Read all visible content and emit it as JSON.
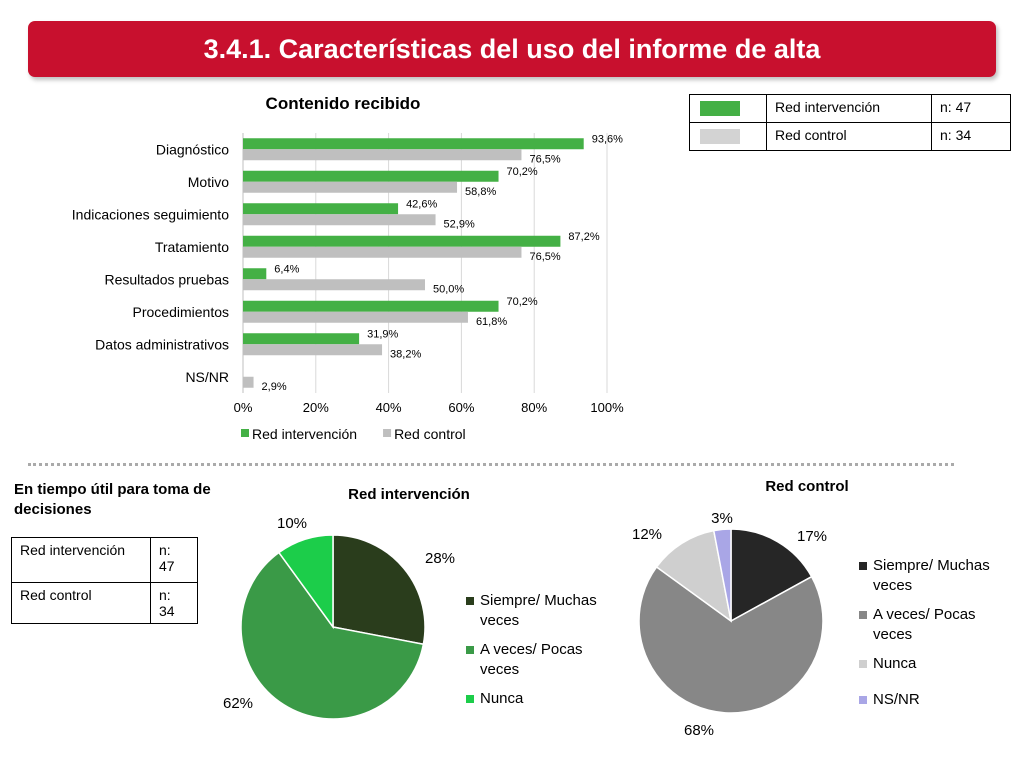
{
  "header": {
    "title": "3.4.1. Características del uso del informe de alta"
  },
  "top_legend": {
    "rows": [
      {
        "label": "Red intervención",
        "n": "n: 47",
        "color": "#44b045"
      },
      {
        "label": "Red control",
        "n": "n: 34",
        "color": "#d3d3d3"
      }
    ]
  },
  "section2": {
    "title": "En tiempo útil para toma de decisiones"
  },
  "left_table": {
    "rows": [
      {
        "label": "Red intervención",
        "n": "n: 47"
      },
      {
        "label": "Red control",
        "n": "n: 34"
      }
    ]
  },
  "chart_data": [
    {
      "type": "bar",
      "orientation": "horizontal",
      "title": "Contenido recibido",
      "categories": [
        "Diagnóstico",
        "Motivo",
        "Indicaciones seguimiento",
        "Tratamiento",
        "Resultados pruebas",
        "Procedimientos",
        "Datos administrativos",
        "NS/NR"
      ],
      "series": [
        {
          "name": "Red intervención",
          "color": "#44b045",
          "values": [
            93.6,
            70.2,
            42.6,
            87.2,
            6.4,
            70.2,
            31.9,
            null
          ],
          "labels": [
            "93,6%",
            "70,2%",
            "42,6%",
            "87,2%",
            "6,4%",
            "70,2%",
            "31,9%",
            ""
          ]
        },
        {
          "name": "Red control",
          "color": "#bfbfbf",
          "values": [
            76.5,
            58.8,
            52.9,
            76.5,
            50.0,
            61.8,
            38.2,
            2.9
          ],
          "labels": [
            "76,5%",
            "58,8%",
            "52,9%",
            "76,5%",
            "50,0%",
            "61,8%",
            "38,2%",
            "2,9%"
          ]
        }
      ],
      "xlim": [
        0,
        100
      ],
      "xticks": [
        "0%",
        "20%",
        "40%",
        "60%",
        "80%",
        "100%"
      ],
      "grid": true,
      "legend": "bottom"
    },
    {
      "type": "pie",
      "title": "Red intervención",
      "categories": [
        "Siempre/ Muchas veces",
        "A veces/ Pocas veces",
        "Nunca"
      ],
      "values": [
        28,
        62,
        10
      ],
      "labels": [
        "28%",
        "62%",
        "10%"
      ],
      "colors": [
        "#2a3d1c",
        "#3a9a47",
        "#1ccd4a"
      ],
      "legend": "right"
    },
    {
      "type": "pie",
      "title": "Red control",
      "categories": [
        "Siempre/ Muchas veces",
        "A veces/ Pocas veces",
        "Nunca",
        "NS/NR"
      ],
      "values": [
        17,
        68,
        12,
        3
      ],
      "labels": [
        "17%",
        "68%",
        "12%",
        "3%"
      ],
      "colors": [
        "#262626",
        "#878787",
        "#cfcfcf",
        "#a9a6e6"
      ],
      "legend": "right"
    }
  ]
}
